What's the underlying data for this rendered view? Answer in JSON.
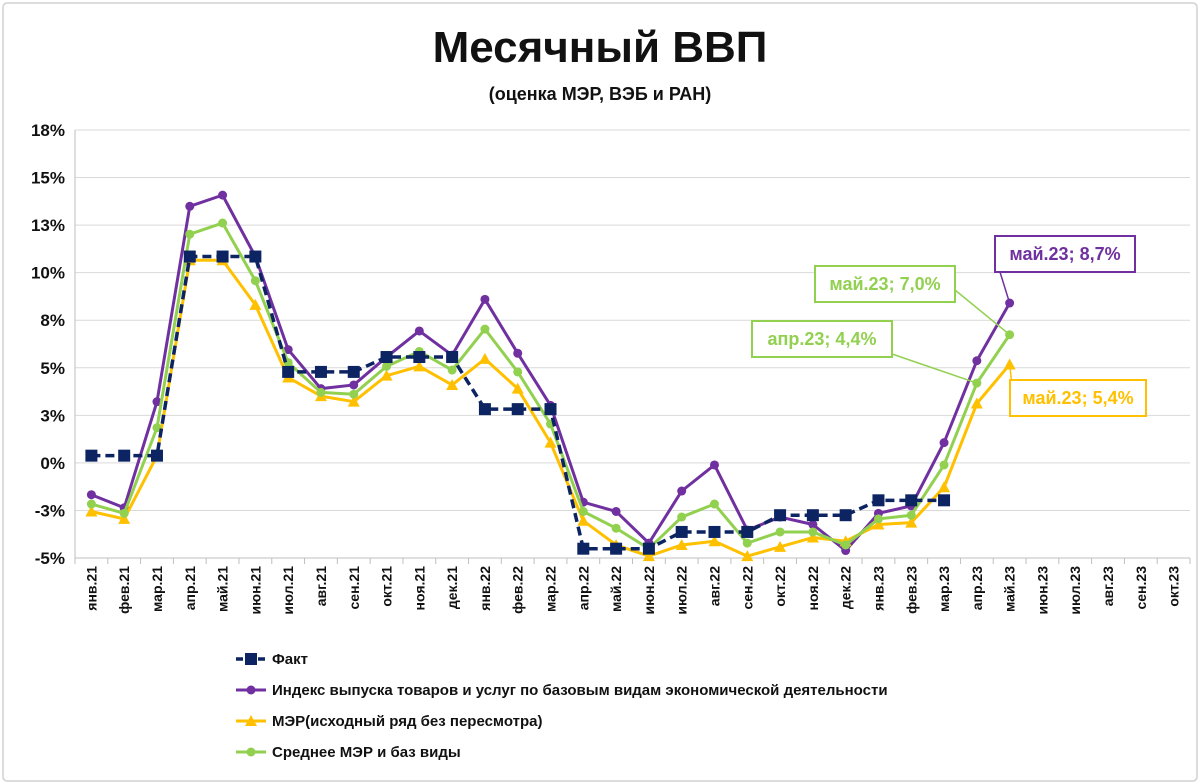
{
  "chart_data": {
    "type": "line",
    "title": "Месячный ВВП",
    "subtitle": "(оценка МЭР, ВЭБ и РАН)",
    "categories": [
      "янв.21",
      "фев.21",
      "мар.21",
      "апр.21",
      "май.21",
      "июн.21",
      "июл.21",
      "авг.21",
      "сен.21",
      "окт.21",
      "ноя.21",
      "дек.21",
      "янв.22",
      "фев.22",
      "мар.22",
      "апр.22",
      "май.22",
      "июн.22",
      "июл.22",
      "авг.22",
      "сен.22",
      "окт.22",
      "ноя.22",
      "дек.22",
      "янв.23",
      "фев.23",
      "мар.23",
      "апр.23",
      "май.23",
      "июн.23",
      "июл.23",
      "авг.23",
      "сен.23",
      "окт.23"
    ],
    "y_ticks": [
      "18%",
      "15%",
      "13%",
      "10%",
      "8%",
      "5%",
      "3%",
      "0%",
      "-3%",
      "-5%"
    ],
    "ylim": [
      -5,
      18
    ],
    "grid": true,
    "legend_position": "bottom",
    "series": [
      {
        "name": "Факт",
        "color": "#0d2462",
        "marker": "square",
        "dashed": true,
        "values": [
          0.5,
          0.5,
          0.5,
          11.2,
          11.2,
          11.2,
          5.0,
          5.0,
          5.0,
          5.8,
          5.8,
          5.8,
          3.0,
          3.0,
          3.0,
          -4.5,
          -4.5,
          -4.5,
          -3.6,
          -3.6,
          -3.6,
          -2.7,
          -2.7,
          -2.7,
          -1.9,
          -1.9,
          -1.9,
          null,
          null,
          null,
          null,
          null,
          null,
          null
        ]
      },
      {
        "name": "Индекс выпуска товаров и услуг по базовым видам экономической деятельности",
        "color": "#7030a0",
        "marker": "circle",
        "dashed": false,
        "values": [
          -1.6,
          -2.3,
          3.4,
          13.9,
          14.5,
          11.2,
          6.2,
          4.1,
          4.3,
          5.8,
          7.2,
          5.9,
          8.9,
          6.0,
          3.2,
          -2.0,
          -2.5,
          -4.2,
          -1.4,
          0.0,
          -3.5,
          -2.8,
          -3.2,
          -4.6,
          -2.6,
          -2.2,
          1.2,
          5.6,
          8.7,
          null,
          null,
          null,
          null,
          null
        ]
      },
      {
        "name": "МЭР(исходный ряд без пересмотра)",
        "color": "#ffc000",
        "marker": "triangle",
        "dashed": false,
        "values": [
          -2.5,
          -2.9,
          0.5,
          11.0,
          11.0,
          8.6,
          4.7,
          3.7,
          3.4,
          4.8,
          5.3,
          4.3,
          5.7,
          4.1,
          1.2,
          -3.0,
          -4.3,
          -4.9,
          -4.3,
          -4.1,
          -4.9,
          -4.4,
          -3.9,
          -4.1,
          -3.2,
          -3.1,
          -1.2,
          3.3,
          5.4,
          null,
          null,
          null,
          null,
          null
        ]
      },
      {
        "name": "Среднее МЭР и баз виды",
        "color": "#92d050",
        "marker": "circle",
        "dashed": false,
        "values": [
          -2.1,
          -2.6,
          2.0,
          12.4,
          13.0,
          9.9,
          5.5,
          3.9,
          3.8,
          5.3,
          6.1,
          5.1,
          7.3,
          5.0,
          2.2,
          -2.5,
          -3.4,
          -4.5,
          -2.8,
          -2.1,
          -4.2,
          -3.6,
          -3.6,
          -4.3,
          -2.9,
          -2.7,
          0.0,
          4.4,
          7.0,
          null,
          null,
          null,
          null,
          null
        ]
      }
    ],
    "annotations": [
      {
        "text": "май.23; 8,7%",
        "series": 1,
        "index": 28,
        "color": "#7030a0"
      },
      {
        "text": "май.23; 7,0%",
        "series": 3,
        "index": 28,
        "color": "#92d050"
      },
      {
        "text": "апр.23; 4,4%",
        "series": 3,
        "index": 27,
        "color": "#92d050"
      },
      {
        "text": "май.23; 5,4%",
        "series": 2,
        "index": 28,
        "color": "#ffc000"
      }
    ]
  }
}
